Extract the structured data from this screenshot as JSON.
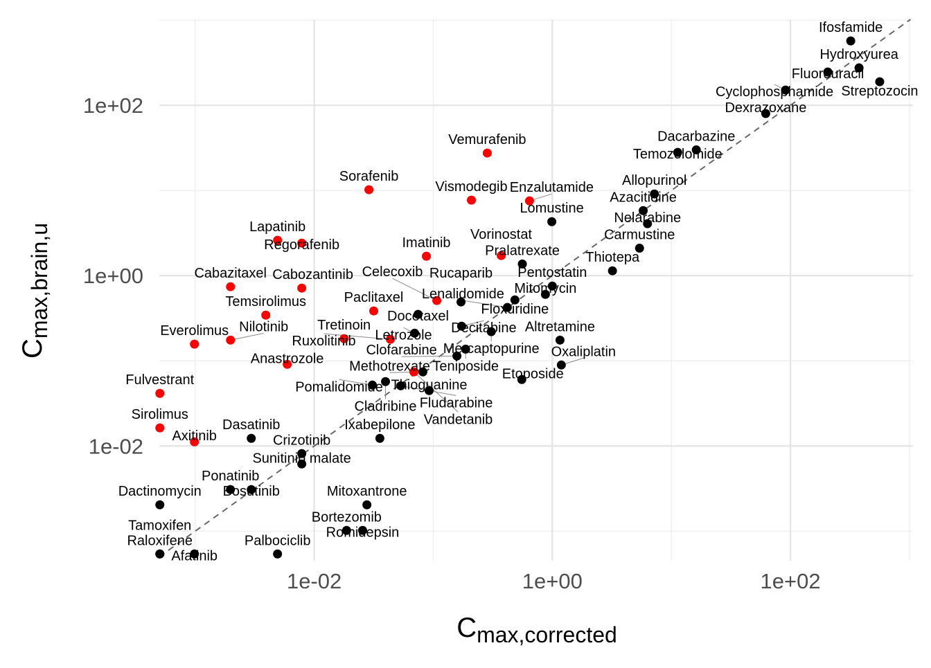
{
  "chart_data": {
    "type": "scatter",
    "xscale": "log10",
    "yscale": "log10",
    "xlabel": {
      "main": "C",
      "sub": "max,corrected"
    },
    "ylabel": {
      "main": "C",
      "sub": "max,brain,u"
    },
    "xlim": [
      0.0005,
      1070
    ],
    "ylim": [
      0.00045,
      1020
    ],
    "xticks": [
      {
        "value": 0.01,
        "label": "1e-02"
      },
      {
        "value": 1,
        "label": "1e+00"
      },
      {
        "value": 100,
        "label": "1e+02"
      }
    ],
    "yticks": [
      {
        "value": 0.01,
        "label": "1e-02"
      },
      {
        "value": 1,
        "label": "1e+00"
      },
      {
        "value": 100,
        "label": "1e+02"
      }
    ],
    "minor_grid": [
      0.001,
      0.1,
      10,
      1000
    ],
    "grid": true,
    "reference_line": "y = x (dashed)",
    "colors": {
      "red": "#ff0000",
      "black": "#000000",
      "grid": "#e5e5e5",
      "ref": "#666666"
    },
    "points": [
      {
        "name": "Ifosfamide",
        "x": 321,
        "y": 570,
        "color": "black"
      },
      {
        "name": "Hydroxyurea",
        "x": 377,
        "y": 275,
        "color": "black"
      },
      {
        "name": "Fluorouracil",
        "x": 206,
        "y": 246,
        "color": "black"
      },
      {
        "name": "Streptozocin",
        "x": 562,
        "y": 189,
        "color": "black"
      },
      {
        "name": "Cyclophosphamide",
        "x": 91,
        "y": 151,
        "color": "black"
      },
      {
        "name": "Dexrazoxane",
        "x": 62,
        "y": 80,
        "color": "black"
      },
      {
        "name": "Dacarbazine",
        "x": 16.2,
        "y": 30,
        "color": "black"
      },
      {
        "name": "Temozolomide",
        "x": 11.3,
        "y": 28,
        "color": "black"
      },
      {
        "name": "Allopurinol",
        "x": 7.2,
        "y": 9.1,
        "color": "black"
      },
      {
        "name": "Azacitidine",
        "x": 5.8,
        "y": 5.8,
        "color": "black"
      },
      {
        "name": "Nelarabine",
        "x": 6.3,
        "y": 4.07,
        "color": "black"
      },
      {
        "name": "Lomustine",
        "x": 0.99,
        "y": 4.3,
        "color": "black"
      },
      {
        "name": "Carmustine",
        "x": 5.4,
        "y": 2.1,
        "color": "black"
      },
      {
        "name": "Pralatrexate",
        "x": 0.56,
        "y": 1.37,
        "color": "black"
      },
      {
        "name": "Thiotepa",
        "x": 3.2,
        "y": 1.14,
        "color": "black"
      },
      {
        "name": "Pentostatin",
        "x": 1.0,
        "y": 0.755,
        "color": "black"
      },
      {
        "name": "Mitomycin",
        "x": 0.875,
        "y": 0.603,
        "color": "black"
      },
      {
        "name": "Floxuridine",
        "x": 0.485,
        "y": 0.519,
        "color": "black"
      },
      {
        "name": "Lenalidomide",
        "x": 0.419,
        "y": 0.423,
        "color": "black"
      },
      {
        "name": "Rucaparib",
        "x": 0.171,
        "y": 0.491,
        "color": "black"
      },
      {
        "name": "Docetaxel",
        "x": 0.0745,
        "y": 0.351,
        "color": "black"
      },
      {
        "name": "Decitabine",
        "x": 0.173,
        "y": 0.255,
        "color": "black"
      },
      {
        "name": "Mercaptopurine",
        "x": 0.307,
        "y": 0.22,
        "color": "black"
      },
      {
        "name": "Letrozole",
        "x": 0.0697,
        "y": 0.211,
        "color": "black"
      },
      {
        "name": "Teniposide",
        "x": 0.187,
        "y": 0.137,
        "color": "black"
      },
      {
        "name": "Clofarabine",
        "x": 0.158,
        "y": 0.114,
        "color": "black"
      },
      {
        "name": "Methotrexate",
        "x": 0.0818,
        "y": 0.0741,
        "color": "black"
      },
      {
        "name": "Altretamine",
        "x": 1.16,
        "y": 0.175,
        "color": "black"
      },
      {
        "name": "Oxaliplatin",
        "x": 1.19,
        "y": 0.0893,
        "color": "black"
      },
      {
        "name": "Etoposide",
        "x": 0.554,
        "y": 0.0603,
        "color": "black"
      },
      {
        "name": "Thioguanine",
        "x": 0.0923,
        "y": 0.0447,
        "color": "black"
      },
      {
        "name": "Pomalidomide",
        "x": 0.0308,
        "y": 0.0519,
        "color": "black"
      },
      {
        "name": "Cladribine",
        "x": 0.0397,
        "y": 0.057,
        "color": "black"
      },
      {
        "name": "Fludarabine",
        "x": 0.0533,
        "y": 0.0509,
        "color": "black"
      },
      {
        "name": "Ixabepilone",
        "x": 0.0356,
        "y": 0.0123,
        "color": "black"
      },
      {
        "name": "Dasatinib",
        "x": 0.00296,
        "y": 0.0123,
        "color": "black"
      },
      {
        "name": "Crizotinib",
        "x": 0.00786,
        "y": 0.00814,
        "color": "black"
      },
      {
        "name": "Sunitinib malate",
        "x": 0.00786,
        "y": 0.00615,
        "color": "black"
      },
      {
        "name": "Ponatinib",
        "x": 0.00198,
        "y": 0.00308,
        "color": "black"
      },
      {
        "name": "Bosutinib",
        "x": 0.00296,
        "y": 0.00308,
        "color": "black"
      },
      {
        "name": "Dactinomycin",
        "x": 0.000505,
        "y": 0.00204,
        "color": "black"
      },
      {
        "name": "Mitoxantrone",
        "x": 0.0277,
        "y": 0.00204,
        "color": "black"
      },
      {
        "name": "Bortezomib",
        "x": 0.0187,
        "y": 0.00102,
        "color": "black"
      },
      {
        "name": "Romidepsin",
        "x": 0.0255,
        "y": 0.00102,
        "color": "black"
      },
      {
        "name": "Raloxifene",
        "x": 0.000505,
        "y": 0.00054,
        "color": "black"
      },
      {
        "name": "Tamoxifen",
        "x": 0.000505,
        "y": 0.00054,
        "color": "black"
      },
      {
        "name": "Afatinib",
        "x": 0.000986,
        "y": 0.00054,
        "color": "black"
      },
      {
        "name": "Palbociclib",
        "x": 0.00492,
        "y": 0.00054,
        "color": "black"
      },
      {
        "name": "Vemurafenib",
        "x": 0.284,
        "y": 27.5,
        "color": "red"
      },
      {
        "name": "Sorafenib",
        "x": 0.0288,
        "y": 10.2,
        "color": "red"
      },
      {
        "name": "Vismodegib",
        "x": 0.209,
        "y": 7.7,
        "color": "red"
      },
      {
        "name": "Enzalutamide",
        "x": 0.643,
        "y": 7.55,
        "color": "red"
      },
      {
        "name": "Lapatinib",
        "x": 0.00492,
        "y": 2.6,
        "color": "red"
      },
      {
        "name": "Regorafenib",
        "x": 0.00786,
        "y": 2.41,
        "color": "red"
      },
      {
        "name": "Imatinib",
        "x": 0.0875,
        "y": 1.69,
        "color": "red"
      },
      {
        "name": "Vorinostat",
        "x": 0.372,
        "y": 1.72,
        "color": "red"
      },
      {
        "name": "Cabazitaxel",
        "x": 0.00198,
        "y": 0.741,
        "color": "red"
      },
      {
        "name": "Cabozantinib",
        "x": 0.00786,
        "y": 0.714,
        "color": "red"
      },
      {
        "name": "Temsirolimus",
        "x": 0.00392,
        "y": 0.344,
        "color": "red"
      },
      {
        "name": "Paclitaxel",
        "x": 0.0316,
        "y": 0.385,
        "color": "red"
      },
      {
        "name": "Celecoxib",
        "x": 0.107,
        "y": 0.51,
        "color": "red"
      },
      {
        "name": "Everolimus",
        "x": 0.000986,
        "y": 0.157,
        "color": "red"
      },
      {
        "name": "Nilotinib",
        "x": 0.00198,
        "y": 0.175,
        "color": "red"
      },
      {
        "name": "Tretinoin",
        "x": 0.0178,
        "y": 0.182,
        "color": "red"
      },
      {
        "name": "Ruxolitinib",
        "x": 0.0436,
        "y": 0.179,
        "color": "red"
      },
      {
        "name": "Anastrozole",
        "x": 0.00593,
        "y": 0.091,
        "color": "red"
      },
      {
        "name": "Vandetanib",
        "x": 0.0687,
        "y": 0.0741,
        "color": "red"
      },
      {
        "name": "Fulvestrant",
        "x": 0.000505,
        "y": 0.0415,
        "color": "red"
      },
      {
        "name": "Sirolimus",
        "x": 0.000505,
        "y": 0.0163,
        "color": "red"
      },
      {
        "name": "Axitinib",
        "x": 0.000986,
        "y": 0.0112,
        "color": "red"
      }
    ]
  }
}
